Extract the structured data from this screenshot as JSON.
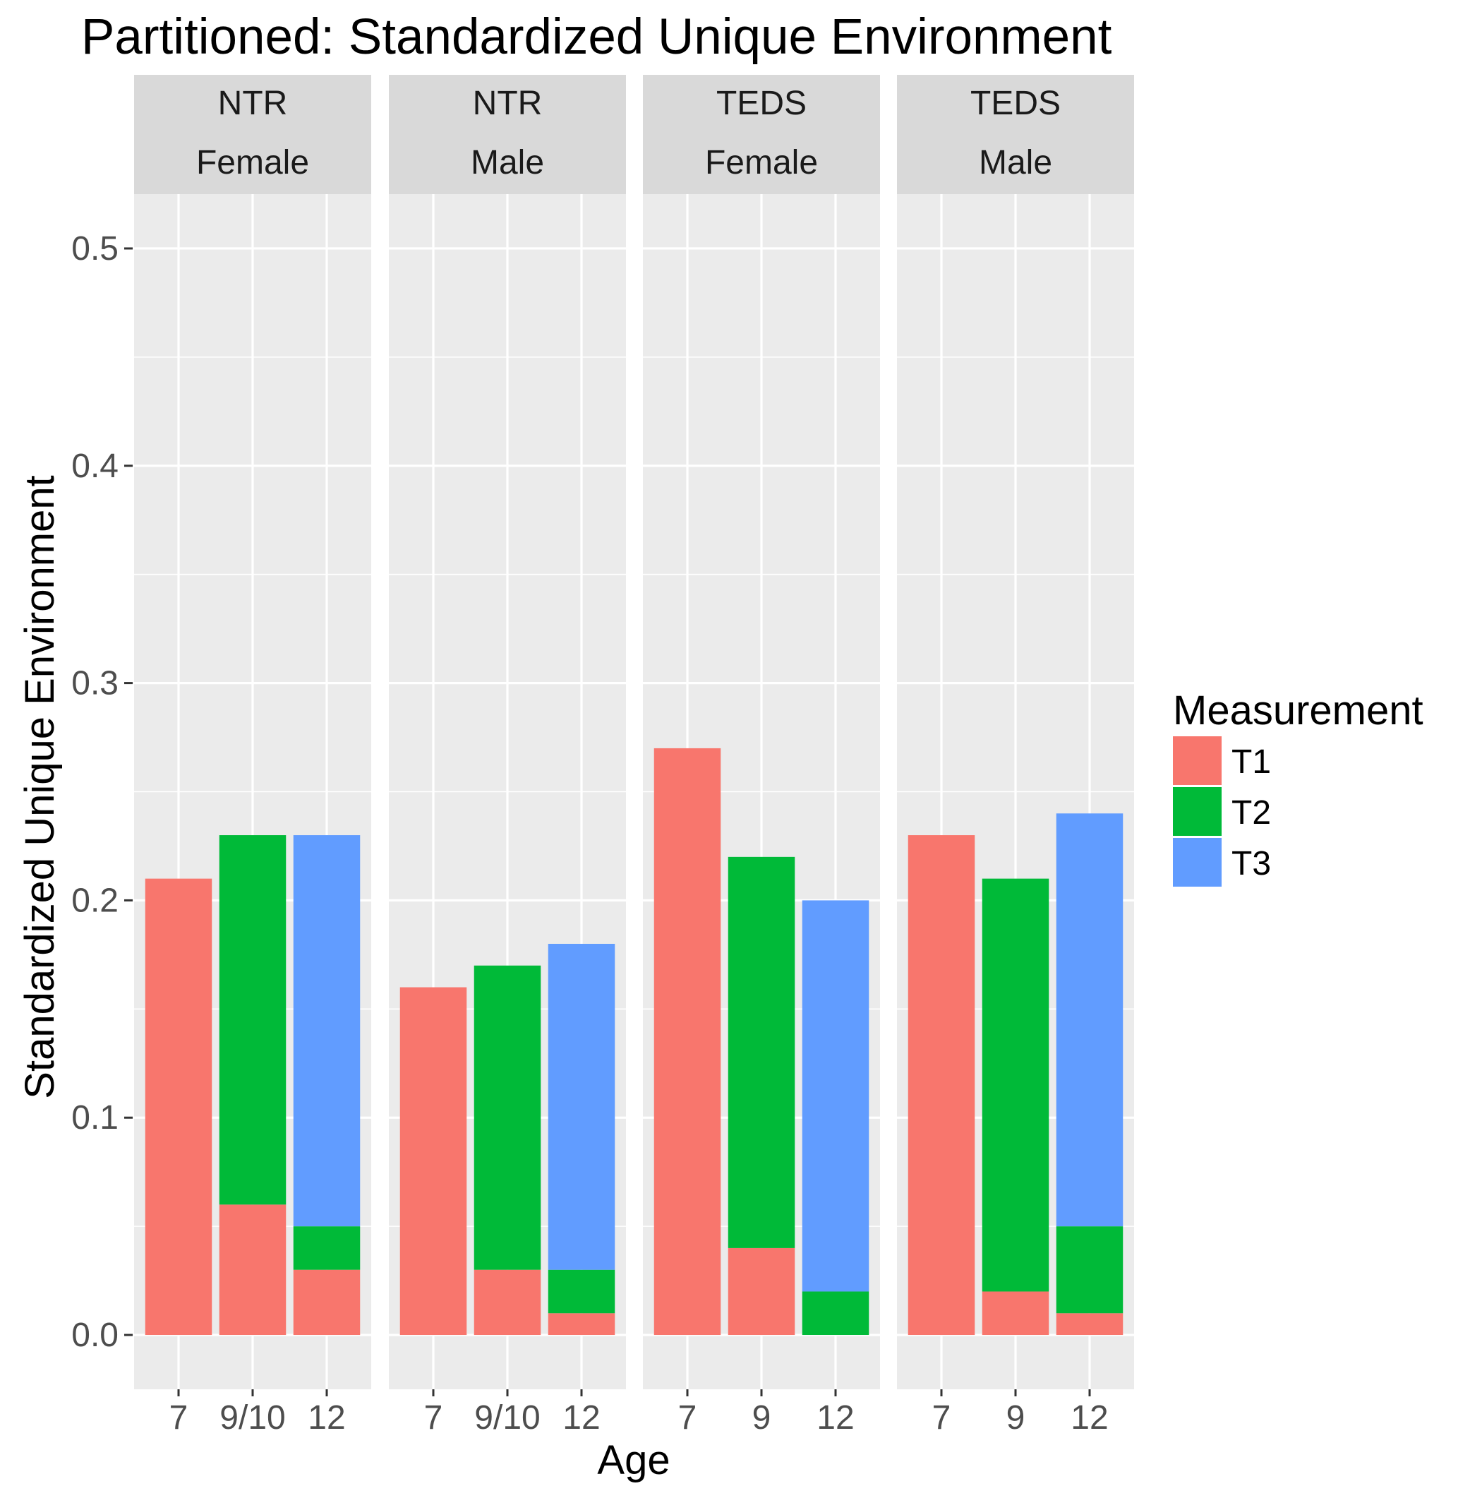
{
  "chart_data": {
    "type": "bar",
    "stacked": true,
    "title": "Partitioned: Standardized Unique Environment",
    "xlabel": "Age",
    "ylabel": "Standardized Unique Environment",
    "ylim": [
      -0.025,
      0.525
    ],
    "yticks": [
      "0.0",
      "0.1",
      "0.2",
      "0.3",
      "0.4",
      "0.5"
    ],
    "grid": true,
    "legend": {
      "title": "Measurement",
      "position": "right",
      "entries": [
        {
          "name": "T1",
          "color": "#F8766D"
        },
        {
          "name": "T2",
          "color": "#00BA38"
        },
        {
          "name": "T3",
          "color": "#619CFF"
        }
      ]
    },
    "facets": [
      {
        "strip": [
          "NTR",
          "Female"
        ],
        "categories": [
          "7",
          "9/10",
          "12"
        ],
        "series": [
          {
            "name": "T1",
            "values": [
              0.21,
              0.06,
              0.03
            ]
          },
          {
            "name": "T2",
            "values": [
              0,
              0.17,
              0.02
            ]
          },
          {
            "name": "T3",
            "values": [
              0,
              0,
              0.18
            ]
          }
        ]
      },
      {
        "strip": [
          "NTR",
          "Male"
        ],
        "categories": [
          "7",
          "9/10",
          "12"
        ],
        "series": [
          {
            "name": "T1",
            "values": [
              0.16,
              0.03,
              0.01
            ]
          },
          {
            "name": "T2",
            "values": [
              0,
              0.14,
              0.02
            ]
          },
          {
            "name": "T3",
            "values": [
              0,
              0,
              0.15
            ]
          }
        ]
      },
      {
        "strip": [
          "TEDS",
          "Female"
        ],
        "categories": [
          "7",
          "9",
          "12"
        ],
        "series": [
          {
            "name": "T1",
            "values": [
              0.27,
              0.04,
              0
            ]
          },
          {
            "name": "T2",
            "values": [
              0,
              0.18,
              0.02
            ]
          },
          {
            "name": "T3",
            "values": [
              0,
              0,
              0.18
            ]
          }
        ]
      },
      {
        "strip": [
          "TEDS",
          "Male"
        ],
        "categories": [
          "7",
          "9",
          "12"
        ],
        "series": [
          {
            "name": "T1",
            "values": [
              0.23,
              0.02,
              0.01
            ]
          },
          {
            "name": "T2",
            "values": [
              0,
              0.19,
              0.04
            ]
          },
          {
            "name": "T3",
            "values": [
              0,
              0,
              0.19
            ]
          }
        ]
      }
    ]
  }
}
